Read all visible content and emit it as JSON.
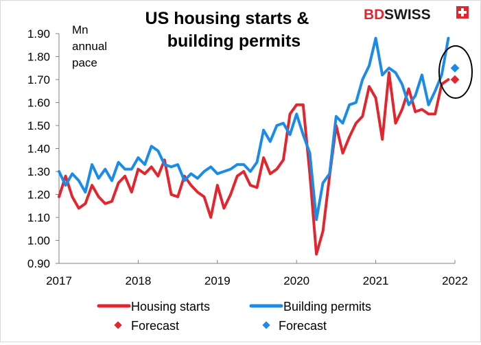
{
  "chart_data": {
    "type": "line",
    "title_line1": "US housing starts &",
    "title_line2": "building permits",
    "unit_label_lines": [
      "Mn",
      "annual",
      "pace"
    ],
    "brand": {
      "bd": "BD",
      "swiss": "SWISS",
      "color": "#e3262e"
    },
    "ylim": [
      0.9,
      1.9
    ],
    "yticks": [
      0.9,
      1.0,
      1.1,
      1.2,
      1.3,
      1.4,
      1.5,
      1.6,
      1.7,
      1.8,
      1.9
    ],
    "ytick_labels": [
      "0.90",
      "1.00",
      "1.10",
      "1.20",
      "1.30",
      "1.40",
      "1.50",
      "1.60",
      "1.70",
      "1.80",
      "1.90"
    ],
    "xlim": [
      2017,
      2022
    ],
    "xticks": [
      2017,
      2018,
      2019,
      2020,
      2021,
      2022
    ],
    "xtick_labels": [
      "2017",
      "2018",
      "2019",
      "2020",
      "2021",
      "2022"
    ],
    "grid": false,
    "legend_position": "bottom",
    "series": [
      {
        "name": "Housing starts",
        "color": "#e3262e",
        "x": [
          2017.0,
          2017.083,
          2017.167,
          2017.25,
          2017.333,
          2017.417,
          2017.5,
          2017.583,
          2017.667,
          2017.75,
          2017.833,
          2017.917,
          2018.0,
          2018.083,
          2018.167,
          2018.25,
          2018.333,
          2018.417,
          2018.5,
          2018.583,
          2018.667,
          2018.75,
          2018.833,
          2018.917,
          2019.0,
          2019.083,
          2019.167,
          2019.25,
          2019.333,
          2019.417,
          2019.5,
          2019.583,
          2019.667,
          2019.75,
          2019.833,
          2019.917,
          2020.0,
          2020.083,
          2020.167,
          2020.25,
          2020.333,
          2020.417,
          2020.5,
          2020.583,
          2020.667,
          2020.75,
          2020.833,
          2020.917,
          2021.0,
          2021.083,
          2021.167,
          2021.25,
          2021.333,
          2021.417,
          2021.5,
          2021.583,
          2021.667,
          2021.75,
          2021.833,
          2021.917
        ],
        "y": [
          1.19,
          1.28,
          1.19,
          1.14,
          1.16,
          1.24,
          1.19,
          1.16,
          1.17,
          1.25,
          1.28,
          1.21,
          1.31,
          1.29,
          1.32,
          1.28,
          1.35,
          1.2,
          1.19,
          1.28,
          1.24,
          1.21,
          1.19,
          1.1,
          1.24,
          1.14,
          1.2,
          1.28,
          1.3,
          1.24,
          1.23,
          1.36,
          1.29,
          1.31,
          1.35,
          1.55,
          1.59,
          1.59,
          1.29,
          0.94,
          1.04,
          1.28,
          1.5,
          1.38,
          1.45,
          1.51,
          1.54,
          1.67,
          1.62,
          1.44,
          1.73,
          1.51,
          1.57,
          1.66,
          1.56,
          1.57,
          1.55,
          1.55,
          1.68,
          1.7
        ]
      },
      {
        "name": "Building permits",
        "color": "#1a8ce8",
        "x": [
          2017.0,
          2017.083,
          2017.167,
          2017.25,
          2017.333,
          2017.417,
          2017.5,
          2017.583,
          2017.667,
          2017.75,
          2017.833,
          2017.917,
          2018.0,
          2018.083,
          2018.167,
          2018.25,
          2018.333,
          2018.417,
          2018.5,
          2018.583,
          2018.667,
          2018.75,
          2018.833,
          2018.917,
          2019.0,
          2019.083,
          2019.167,
          2019.25,
          2019.333,
          2019.417,
          2019.5,
          2019.583,
          2019.667,
          2019.75,
          2019.833,
          2019.917,
          2020.0,
          2020.083,
          2020.167,
          2020.25,
          2020.333,
          2020.417,
          2020.5,
          2020.583,
          2020.667,
          2020.75,
          2020.833,
          2020.917,
          2021.0,
          2021.083,
          2021.167,
          2021.25,
          2021.333,
          2021.417,
          2021.5,
          2021.583,
          2021.667,
          2021.75,
          2021.833,
          2021.917
        ],
        "y": [
          1.3,
          1.24,
          1.29,
          1.26,
          1.21,
          1.33,
          1.27,
          1.31,
          1.26,
          1.34,
          1.31,
          1.31,
          1.36,
          1.33,
          1.41,
          1.39,
          1.33,
          1.32,
          1.33,
          1.26,
          1.29,
          1.27,
          1.3,
          1.32,
          1.29,
          1.3,
          1.31,
          1.33,
          1.33,
          1.3,
          1.34,
          1.48,
          1.43,
          1.5,
          1.51,
          1.46,
          1.55,
          1.46,
          1.38,
          1.09,
          1.25,
          1.29,
          1.54,
          1.51,
          1.59,
          1.6,
          1.7,
          1.76,
          1.88,
          1.72,
          1.75,
          1.73,
          1.68,
          1.59,
          1.63,
          1.72,
          1.59,
          1.65,
          1.72,
          1.88
        ]
      }
    ],
    "forecasts": [
      {
        "name": "Forecast",
        "color": "#e3262e",
        "x": 2022.0,
        "y": 1.7
      },
      {
        "name": "Forecast",
        "color": "#1a8ce8",
        "x": 2022.0,
        "y": 1.75
      }
    ]
  }
}
